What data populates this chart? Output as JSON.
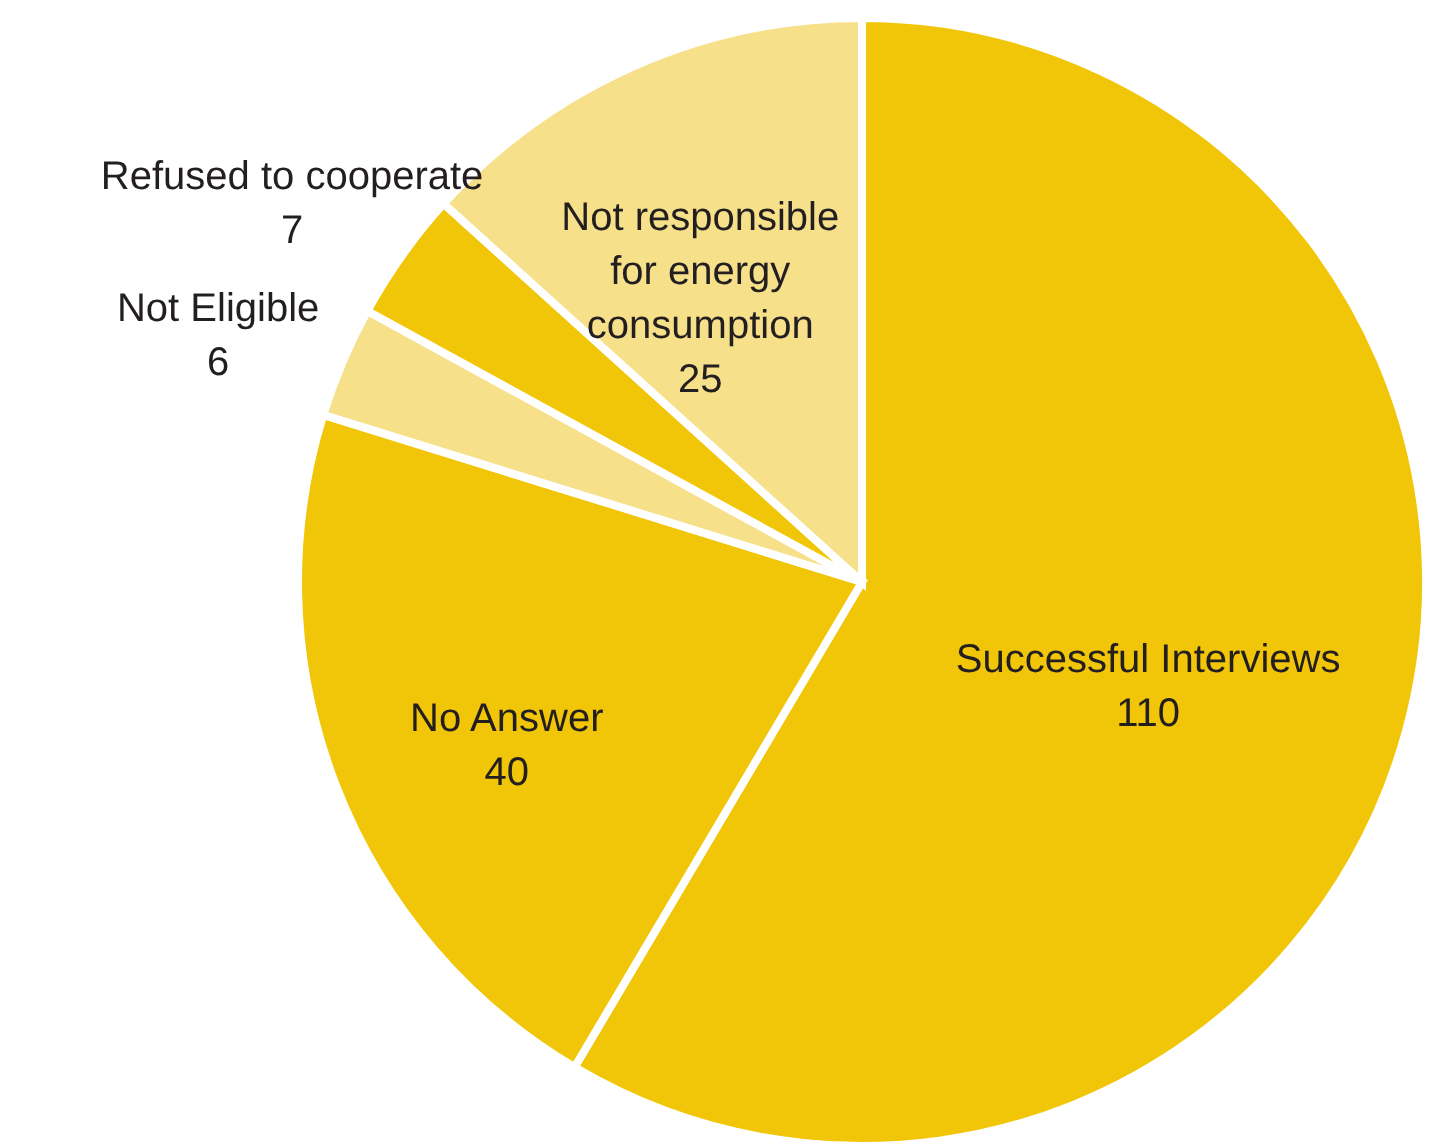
{
  "chart_data": {
    "type": "pie",
    "categories": [
      "Successful Interviews",
      "No Answer",
      "Not Eligible",
      "Refused to cooperate",
      "Not responsible\nfor energy\nconsumption"
    ],
    "values": [
      110,
      40,
      6,
      7,
      25
    ],
    "colors": [
      "#f2c608",
      "#f2c608",
      "#f7e08a",
      "#f2c608",
      "#f7e08a"
    ],
    "data_labels": true
  }
}
